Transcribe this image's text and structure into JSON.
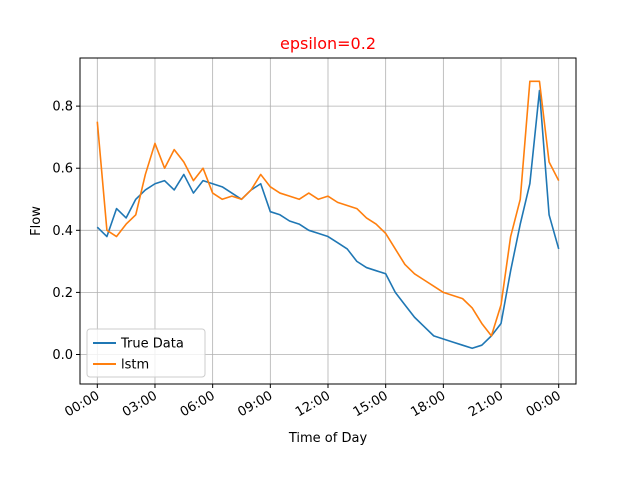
{
  "chart_data": {
    "type": "line",
    "title": "epsilon=0.2",
    "title_color": "#ff0000",
    "xlabel": "Time of Day",
    "ylabel": "Flow",
    "x_unit": "hours",
    "xlim": [
      -0.9,
      24.9
    ],
    "ylim": [
      -0.095,
      0.955
    ],
    "x_ticks": [
      0,
      3,
      6,
      9,
      12,
      15,
      18,
      21,
      24
    ],
    "x_tick_labels": [
      "00:00",
      "03:00",
      "06:00",
      "09:00",
      "12:00",
      "15:00",
      "18:00",
      "21:00",
      "00:00"
    ],
    "y_ticks": [
      0.0,
      0.2,
      0.4,
      0.6,
      0.8
    ],
    "y_tick_labels": [
      "0.0",
      "0.2",
      "0.4",
      "0.6",
      "0.8"
    ],
    "grid": true,
    "legend_position": "lower-left",
    "series": [
      {
        "name": "True Data",
        "color": "#1f77b4",
        "x": [
          0,
          0.5,
          1,
          1.5,
          2,
          2.5,
          3,
          3.5,
          4,
          4.5,
          5,
          5.5,
          6,
          6.5,
          7,
          7.5,
          8,
          8.5,
          9,
          9.5,
          10,
          10.5,
          11,
          11.5,
          12,
          12.5,
          13,
          13.5,
          14,
          14.5,
          15,
          15.5,
          16,
          16.5,
          17,
          17.5,
          18,
          18.5,
          19,
          19.5,
          20,
          20.5,
          21,
          21.5,
          22,
          22.5,
          23,
          23.5,
          24
        ],
        "y": [
          0.41,
          0.38,
          0.47,
          0.44,
          0.5,
          0.53,
          0.55,
          0.56,
          0.53,
          0.58,
          0.52,
          0.56,
          0.55,
          0.54,
          0.52,
          0.5,
          0.53,
          0.55,
          0.46,
          0.45,
          0.43,
          0.42,
          0.4,
          0.39,
          0.38,
          0.36,
          0.34,
          0.3,
          0.28,
          0.27,
          0.26,
          0.2,
          0.16,
          0.12,
          0.09,
          0.06,
          0.05,
          0.04,
          0.03,
          0.02,
          0.03,
          0.06,
          0.1,
          0.27,
          0.42,
          0.55,
          0.85,
          0.45,
          0.34
        ]
      },
      {
        "name": "lstm",
        "color": "#ff7f0e",
        "x": [
          0,
          0.5,
          1,
          1.5,
          2,
          2.5,
          3,
          3.5,
          4,
          4.5,
          5,
          5.5,
          6,
          6.5,
          7,
          7.5,
          8,
          8.5,
          9,
          9.5,
          10,
          10.5,
          11,
          11.5,
          12,
          12.5,
          13,
          13.5,
          14,
          14.5,
          15,
          15.5,
          16,
          16.5,
          17,
          17.5,
          18,
          18.5,
          19,
          19.5,
          20,
          20.5,
          21,
          21.5,
          22,
          22.5,
          23,
          23.5,
          24
        ],
        "y": [
          0.75,
          0.4,
          0.38,
          0.42,
          0.45,
          0.58,
          0.68,
          0.6,
          0.66,
          0.62,
          0.56,
          0.6,
          0.52,
          0.5,
          0.51,
          0.5,
          0.53,
          0.58,
          0.54,
          0.52,
          0.51,
          0.5,
          0.52,
          0.5,
          0.51,
          0.49,
          0.48,
          0.47,
          0.44,
          0.42,
          0.39,
          0.34,
          0.29,
          0.26,
          0.24,
          0.22,
          0.2,
          0.19,
          0.18,
          0.15,
          0.1,
          0.06,
          0.16,
          0.38,
          0.5,
          0.88,
          0.88,
          0.62,
          0.56
        ]
      }
    ]
  }
}
